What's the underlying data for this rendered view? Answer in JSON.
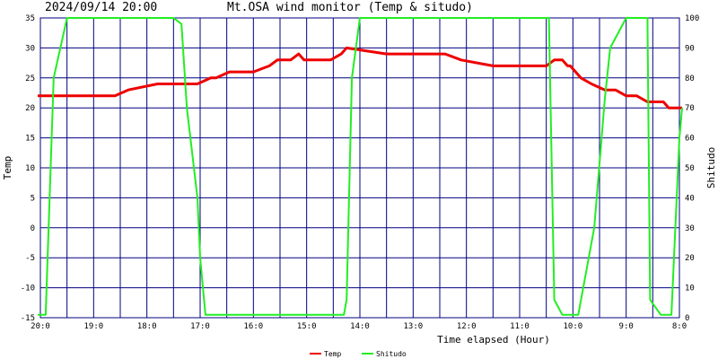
{
  "chart_data": {
    "type": "line",
    "title": "Mt.OSA wind monitor (Temp & situdo)",
    "datetime": "2024/09/14 20:00",
    "xlabel": "Time elapsed (Hour)",
    "ylabel_left": "Temp",
    "ylabel_right": "Shitudo",
    "ylim_left": [
      -15,
      35
    ],
    "ylim_right": [
      0,
      100
    ],
    "yticks_left": [
      "35",
      "30",
      "25",
      "20",
      "15",
      "10",
      "5",
      "0",
      "-5",
      "-10",
      "-15"
    ],
    "yticks_right": [
      "100",
      "90",
      "80",
      "70",
      "60",
      "50",
      "40",
      "30",
      "20",
      "10",
      "0"
    ],
    "x_range": [
      20,
      8
    ],
    "xticks": [
      {
        "x": 20,
        "label": "20:0"
      },
      {
        "x": 19,
        "label": "19:0"
      },
      {
        "x": 18,
        "label": "18:0"
      },
      {
        "x": 17,
        "label": "17:0"
      },
      {
        "x": 16,
        "label": "16:0"
      },
      {
        "x": 15,
        "label": "15:0"
      },
      {
        "x": 14,
        "label": "14:0"
      },
      {
        "x": 13,
        "label": "13:0"
      },
      {
        "x": 12,
        "label": "12:0"
      },
      {
        "x": 11,
        "label": "11:0"
      },
      {
        "x": 10,
        "label": "10:0"
      },
      {
        "x": 9,
        "label": "9:0"
      },
      {
        "x": 8,
        "label": "8:0"
      }
    ],
    "grid": true,
    "legend_position": "bottom-center",
    "series": [
      {
        "name": "Temp",
        "axis": "left",
        "color": "#ee0000",
        "x": [
          20.05,
          19.3,
          18.6,
          18.35,
          17.8,
          17.3,
          17.05,
          16.8,
          16.7,
          16.45,
          16.0,
          15.7,
          15.55,
          15.3,
          15.15,
          15.05,
          14.95,
          14.55,
          14.35,
          14.25,
          13.5,
          13.2,
          12.9,
          12.7,
          12.4,
          12.1,
          11.5,
          10.9,
          10.65,
          10.5,
          10.35,
          10.2,
          10.1,
          10.05,
          9.85,
          9.65,
          9.4,
          9.2,
          9.0,
          8.8,
          8.6,
          8.3,
          8.2,
          7.95
        ],
        "y": [
          22,
          22,
          22,
          23,
          24,
          24,
          24,
          25,
          25,
          26,
          26,
          27,
          28,
          28,
          29,
          28,
          28,
          28,
          29,
          30,
          29,
          29,
          29,
          29,
          29,
          28,
          27,
          27,
          27,
          27,
          28,
          28,
          27,
          27,
          25,
          24,
          23,
          23,
          22,
          22,
          21,
          21,
          20,
          20
        ]
      },
      {
        "name": "Shitudo",
        "axis": "right",
        "color": "#22ee22",
        "x": [
          20.05,
          19.9,
          19.75,
          19.5,
          18.0,
          17.5,
          17.35,
          17.25,
          17.05,
          17.0,
          16.9,
          15.5,
          14.3,
          14.25,
          14.15,
          14.0,
          13.5,
          10.6,
          10.45,
          10.35,
          10.2,
          10.0,
          9.9,
          9.6,
          9.4,
          9.3,
          9.0,
          8.95,
          8.75,
          8.6,
          8.55,
          8.35,
          8.15,
          8.0,
          7.95
        ],
        "y": [
          1,
          1,
          80,
          100,
          100,
          100,
          98,
          70,
          40,
          20,
          1,
          1,
          1,
          6,
          80,
          100,
          100,
          100,
          100,
          6,
          1,
          1,
          1,
          30,
          73,
          90,
          100,
          100,
          100,
          100,
          6,
          1,
          1,
          60,
          70
        ]
      }
    ]
  }
}
